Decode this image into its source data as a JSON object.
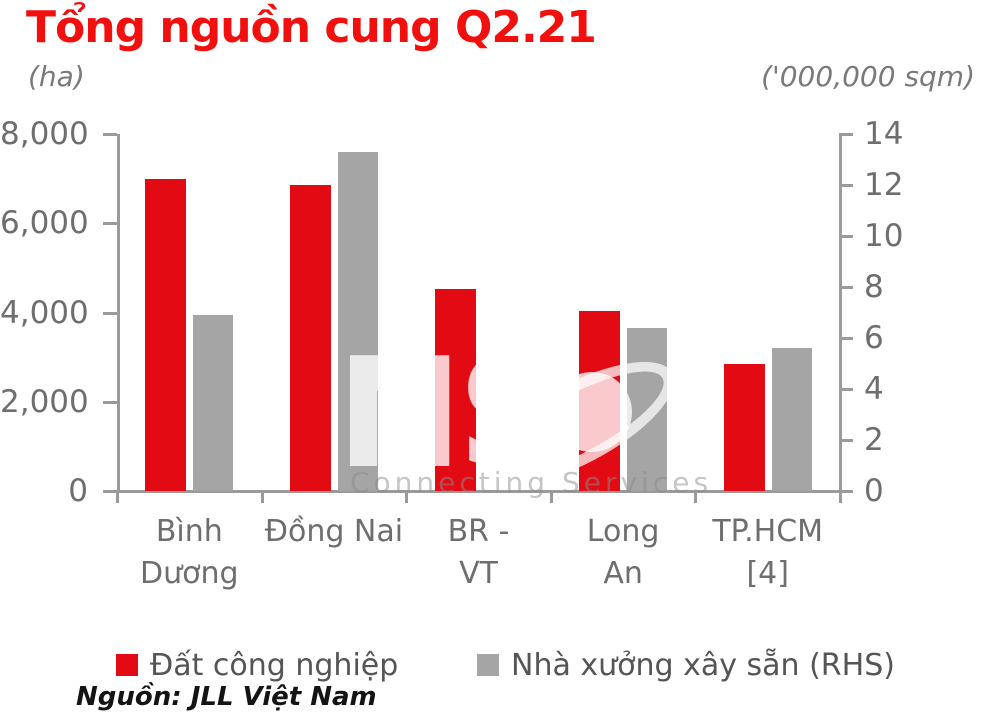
{
  "chart_data": {
    "type": "bar",
    "title": "Tổng nguồn cung Q2.21",
    "left_axis_label": "(ha)",
    "right_axis_label": "('000,000 sqm)",
    "categories": [
      {
        "lines": [
          "Bình",
          "Dương"
        ]
      },
      {
        "lines": [
          "Đồng Nai"
        ]
      },
      {
        "lines": [
          "BR -",
          "VT"
        ]
      },
      {
        "lines": [
          "Long",
          "An"
        ]
      },
      {
        "lines": [
          "TP.HCM",
          "[4]"
        ]
      }
    ],
    "series": [
      {
        "name": "Đất công nghiệp",
        "axis": "left",
        "color": "#e30b13",
        "values": [
          6990,
          6860,
          4530,
          4030,
          2850
        ]
      },
      {
        "name": "Nhà xưởng xây sẵn (RHS)",
        "axis": "right",
        "color": "#a5a5a5",
        "values": [
          6.9,
          13.3,
          null,
          6.4,
          5.6
        ]
      }
    ],
    "left_axis": {
      "min": 0,
      "max": 8000,
      "tick_values": [
        0,
        2000,
        4000,
        6000,
        8000
      ],
      "tick_labels": [
        "0",
        "2,000",
        "4,000",
        "6,000",
        "8,000"
      ]
    },
    "right_axis": {
      "min": 0,
      "max": 14,
      "tick_values": [
        0,
        2,
        4,
        6,
        8,
        10,
        12,
        14
      ],
      "tick_labels": [
        "0",
        "2",
        "4",
        "6",
        "8",
        "10",
        "12",
        "14"
      ]
    },
    "grid": "off",
    "legend_position": "bottom",
    "source": "Nguồn: JLL Việt Nam",
    "watermark": {
      "letters": "NS",
      "tagline": "Connecting Services"
    }
  }
}
